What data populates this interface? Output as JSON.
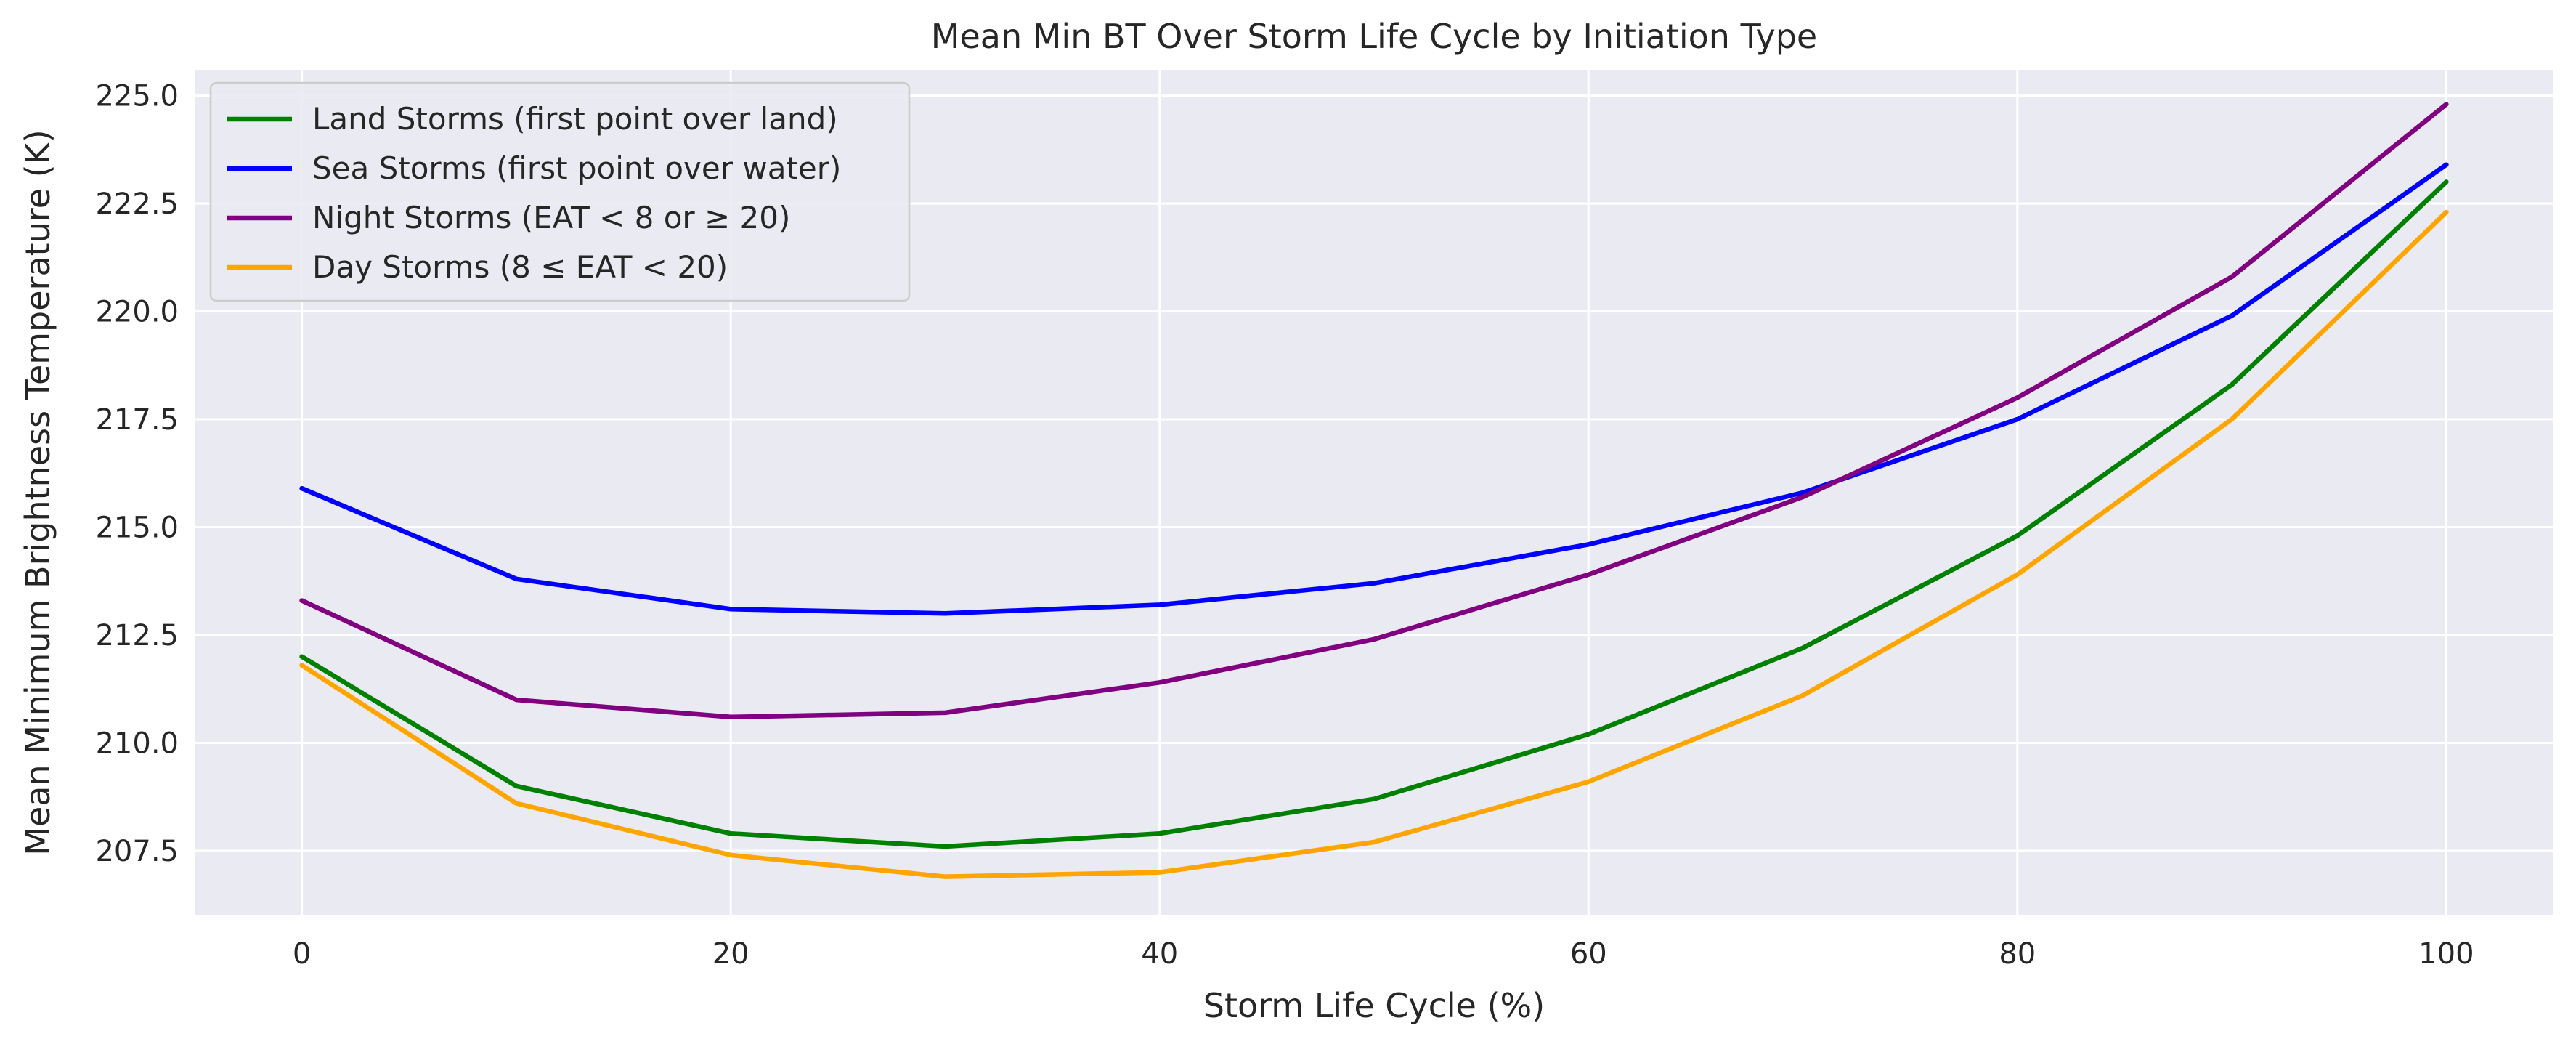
{
  "chart_data": {
    "type": "line",
    "title": "Mean Min BT Over Storm Life Cycle by Initiation Type",
    "xlabel": "Storm Life Cycle (%)",
    "ylabel": "Mean Minimum Brightness Temperature (K)",
    "x": [
      0,
      10,
      20,
      30,
      40,
      50,
      60,
      70,
      80,
      90,
      100
    ],
    "xlim": [
      -5,
      105
    ],
    "ylim": [
      206.0,
      225.6
    ],
    "xticks": [
      0,
      20,
      40,
      60,
      80,
      100
    ],
    "yticks": [
      207.5,
      210.0,
      212.5,
      215.0,
      217.5,
      220.0,
      222.5,
      225.0
    ],
    "xtick_labels": [
      "0",
      "20",
      "40",
      "60",
      "80",
      "100"
    ],
    "ytick_labels": [
      "207.5",
      "210.0",
      "212.5",
      "215.0",
      "217.5",
      "220.0",
      "222.5",
      "225.0"
    ],
    "grid": true,
    "background": "#eaeaf2",
    "legend_position": "upper-left",
    "series": [
      {
        "name": "Land Storms (first point over land)",
        "color": "#008000",
        "values": [
          212.0,
          209.0,
          207.9,
          207.6,
          207.9,
          208.7,
          210.2,
          212.2,
          214.8,
          218.3,
          223.0
        ]
      },
      {
        "name": "Sea Storms (first point over water)",
        "color": "#0000ff",
        "values": [
          215.9,
          213.8,
          213.1,
          213.0,
          213.2,
          213.7,
          214.6,
          215.8,
          217.5,
          219.9,
          223.4
        ]
      },
      {
        "name": "Night Storms (EAT < 8 or ≥ 20)",
        "color": "#800080",
        "values": [
          213.3,
          211.0,
          210.6,
          210.7,
          211.4,
          212.4,
          213.9,
          215.7,
          218.0,
          220.8,
          224.8
        ]
      },
      {
        "name": "Day Storms (8 ≤ EAT < 20)",
        "color": "#ffa500",
        "values": [
          211.8,
          208.6,
          207.4,
          206.9,
          207.0,
          207.7,
          209.1,
          211.1,
          213.9,
          217.5,
          222.3
        ]
      }
    ]
  }
}
